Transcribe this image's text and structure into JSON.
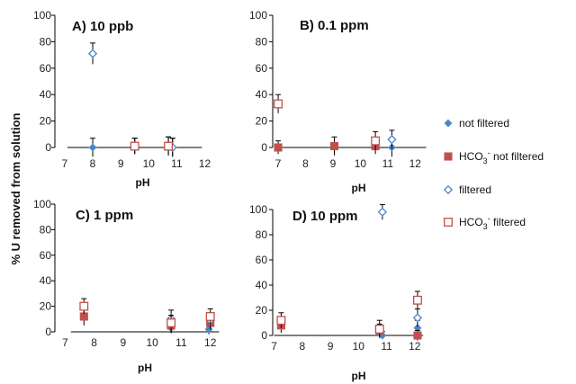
{
  "figure": {
    "ylabel": "% U removed from solution"
  },
  "colors": {
    "blue": "#4a86c8",
    "red": "#c0504d",
    "axis": "#000000"
  },
  "legend": [
    {
      "name": "not filtered",
      "marker": "diamond-filled",
      "color": "#4a86c8"
    },
    {
      "name": "HCO3- not filtered",
      "label_main": "HCO",
      "label_sub": "3",
      "label_sup": "-",
      "label_rest": " not filtered",
      "marker": "square-filled",
      "color": "#c0504d"
    },
    {
      "name": "filtered",
      "marker": "diamond-open",
      "color": "#4a86c8"
    },
    {
      "name": "HCO3- filtered",
      "label_main": "HCO",
      "label_sub": "3",
      "label_sup": "-",
      "label_rest": " filtered",
      "marker": "square-open",
      "color": "#c0504d"
    }
  ],
  "chart_data": [
    {
      "type": "scatter",
      "title": "A) 10 ppb",
      "xlabel": "pH",
      "ylabel": "% U removed from solution",
      "xlim": [
        7,
        12
      ],
      "ylim": [
        0,
        100
      ],
      "xticks": [
        7,
        8,
        9,
        10,
        11,
        12
      ],
      "yticks": [
        0,
        20,
        40,
        60,
        80,
        100
      ],
      "series": [
        {
          "name": "not filtered",
          "points": [
            {
              "x": 8.0,
              "y": 0,
              "err": 7
            },
            {
              "x": 10.85,
              "y": 0,
              "err": 7
            }
          ]
        },
        {
          "name": "HCO3- not filtered",
          "points": [
            {
              "x": 9.5,
              "y": 1,
              "err": 6
            },
            {
              "x": 10.7,
              "y": 1,
              "err": 7
            }
          ]
        },
        {
          "name": "filtered",
          "points": [
            {
              "x": 8.0,
              "y": 71,
              "err": 8
            },
            {
              "x": 10.85,
              "y": 0,
              "err": 7
            }
          ]
        },
        {
          "name": "HCO3- filtered",
          "points": [
            {
              "x": 9.5,
              "y": 1,
              "err": 6
            },
            {
              "x": 10.7,
              "y": 1,
              "err": 7
            }
          ]
        }
      ]
    },
    {
      "type": "scatter",
      "title": "B) 0.1 ppm",
      "xlabel": "pH",
      "ylabel": "",
      "xlim": [
        7,
        12
      ],
      "ylim": [
        0,
        100
      ],
      "xticks": [
        7,
        8,
        9,
        10,
        11,
        12
      ],
      "yticks": [
        0,
        20,
        40,
        60,
        80,
        100
      ],
      "series": [
        {
          "name": "not filtered",
          "points": [
            {
              "x": 11.15,
              "y": 0,
              "err": 7
            }
          ]
        },
        {
          "name": "HCO3- not filtered",
          "points": [
            {
              "x": 7.0,
              "y": 0,
              "err": 5
            },
            {
              "x": 9.05,
              "y": 1,
              "err": 7
            },
            {
              "x": 10.55,
              "y": 1,
              "err": 6
            }
          ]
        },
        {
          "name": "filtered",
          "points": [
            {
              "x": 11.15,
              "y": 6,
              "err": 7
            }
          ]
        },
        {
          "name": "HCO3- filtered",
          "points": [
            {
              "x": 7.0,
              "y": 33,
              "err": 7
            },
            {
              "x": 10.55,
              "y": 5,
              "err": 7
            }
          ]
        }
      ]
    },
    {
      "type": "scatter",
      "title": "C) 1 ppm",
      "xlabel": "pH",
      "ylabel": "",
      "xlim": [
        7,
        12
      ],
      "ylim": [
        0,
        100
      ],
      "xticks": [
        7,
        8,
        9,
        10,
        11,
        12
      ],
      "yticks": [
        0,
        20,
        40,
        60,
        80,
        100
      ],
      "series": [
        {
          "name": "not filtered",
          "points": [
            {
              "x": 10.65,
              "y": 3,
              "err": 4
            },
            {
              "x": 11.95,
              "y": 2,
              "err": 4
            }
          ]
        },
        {
          "name": "HCO3- not filtered",
          "points": [
            {
              "x": 7.65,
              "y": 12,
              "err": 7
            },
            {
              "x": 10.65,
              "y": 5,
              "err": 6
            },
            {
              "x": 12.0,
              "y": 7,
              "err": 5
            }
          ]
        },
        {
          "name": "filtered",
          "points": [
            {
              "x": 10.65,
              "y": 10,
              "err": 7
            },
            {
              "x": 12.0,
              "y": 9,
              "err": 6
            }
          ]
        },
        {
          "name": "HCO3- filtered",
          "points": [
            {
              "x": 7.65,
              "y": 20,
              "err": 6
            },
            {
              "x": 10.65,
              "y": 7,
              "err": 6
            },
            {
              "x": 12.0,
              "y": 12,
              "err": 6
            }
          ]
        }
      ]
    },
    {
      "type": "scatter",
      "title": "D) 10 ppm",
      "xlabel": "pH",
      "ylabel": "",
      "xlim": [
        7,
        12
      ],
      "ylim": [
        0,
        100
      ],
      "xticks": [
        7,
        8,
        9,
        10,
        11,
        12
      ],
      "yticks": [
        0,
        20,
        40,
        60,
        80,
        100
      ],
      "series": [
        {
          "name": "not filtered",
          "points": [
            {
              "x": 10.85,
              "y": 0,
              "err": 3
            },
            {
              "x": 12.1,
              "y": 6,
              "err": 6
            }
          ]
        },
        {
          "name": "HCO3- not filtered",
          "points": [
            {
              "x": 7.25,
              "y": 8,
              "err": 6
            },
            {
              "x": 10.75,
              "y": 4,
              "err": 5
            },
            {
              "x": 12.1,
              "y": 0,
              "err": 4
            }
          ]
        },
        {
          "name": "filtered",
          "points": [
            {
              "x": 10.85,
              "y": 98,
              "err": 6
            },
            {
              "x": 12.1,
              "y": 14,
              "err": 7
            }
          ]
        },
        {
          "name": "HCO3- filtered",
          "points": [
            {
              "x": 7.25,
              "y": 12,
              "err": 6
            },
            {
              "x": 10.75,
              "y": 5,
              "err": 7
            },
            {
              "x": 12.1,
              "y": 28,
              "err": 7
            }
          ]
        }
      ]
    }
  ]
}
